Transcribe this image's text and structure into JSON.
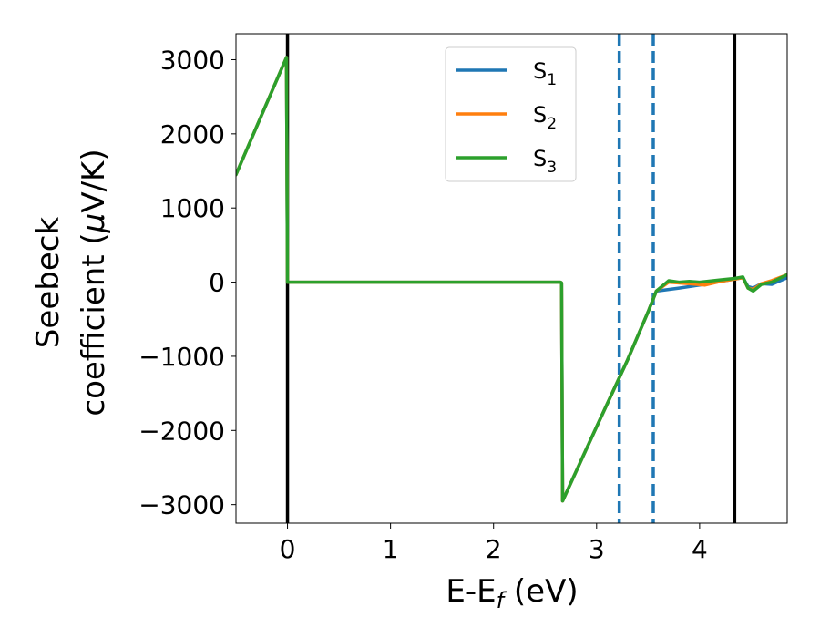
{
  "chart_data": {
    "type": "line",
    "title": "",
    "xlabel_main": "E-E",
    "xlabel_sub": "f",
    "xlabel_unit": " (eV)",
    "ylabel_line1": "Seebeck",
    "ylabel_line2": "coefficient  (",
    "ylabel_mu": "μ",
    "ylabel_unit": "V/K)",
    "xlim": [
      -0.5,
      4.85
    ],
    "ylim": [
      -3250,
      3350
    ],
    "xticks": [
      0,
      1,
      2,
      3,
      4
    ],
    "xtick_labels": [
      "0",
      "1",
      "2",
      "3",
      "4"
    ],
    "yticks": [
      -3000,
      -2000,
      -1000,
      0,
      1000,
      2000,
      3000
    ],
    "ytick_labels": [
      "−3000",
      "−2000",
      "−1000",
      "0",
      "1000",
      "2000",
      "3000"
    ],
    "grid": false,
    "legend_position": "top-center",
    "vlines": [
      {
        "x": 0.0,
        "style": "solid",
        "color": "#000000"
      },
      {
        "x": 4.34,
        "style": "solid",
        "color": "#000000"
      },
      {
        "x": 3.22,
        "style": "dashed",
        "color": "#1f77b4"
      },
      {
        "x": 3.55,
        "style": "dashed",
        "color": "#1f77b4"
      }
    ],
    "series": [
      {
        "name": "S",
        "name_sub": "1",
        "color": "#1f77b4",
        "x": [
          -0.5,
          -0.01,
          0.0,
          2.65,
          2.66,
          2.67,
          3.0,
          3.3,
          3.5,
          3.58,
          3.8,
          4.0,
          4.2,
          4.34,
          4.42,
          4.47,
          4.52,
          4.6,
          4.7,
          4.75,
          4.85
        ],
        "y": [
          1450,
          3030,
          0,
          0,
          -10,
          -2950,
          -1950,
          -1050,
          -400,
          -120,
          -80,
          -40,
          10,
          40,
          60,
          -60,
          -80,
          -20,
          -30,
          0,
          60
        ]
      },
      {
        "name": "S",
        "name_sub": "2",
        "color": "#ff7f0e",
        "x": [
          -0.5,
          -0.01,
          0.0,
          2.65,
          2.66,
          2.67,
          3.0,
          3.3,
          3.5,
          3.58,
          3.7,
          3.9,
          4.05,
          4.2,
          4.34,
          4.42,
          4.47,
          4.52,
          4.6,
          4.7,
          4.85
        ],
        "y": [
          1450,
          3030,
          0,
          0,
          -10,
          -2950,
          -1950,
          -1050,
          -400,
          -120,
          0,
          -20,
          -40,
          10,
          40,
          60,
          -80,
          -100,
          -20,
          20,
          100
        ]
      },
      {
        "name": "S",
        "name_sub": "3",
        "color": "#2ca02c",
        "x": [
          -0.5,
          -0.01,
          0.0,
          2.65,
          2.66,
          2.67,
          3.0,
          3.3,
          3.5,
          3.58,
          3.7,
          3.8,
          3.9,
          4.0,
          4.2,
          4.34,
          4.42,
          4.47,
          4.52,
          4.6,
          4.7,
          4.85
        ],
        "y": [
          1450,
          3030,
          0,
          0,
          -10,
          -2950,
          -1950,
          -1050,
          -400,
          -120,
          20,
          0,
          10,
          0,
          30,
          50,
          70,
          -80,
          -120,
          -30,
          0,
          100
        ]
      }
    ]
  }
}
